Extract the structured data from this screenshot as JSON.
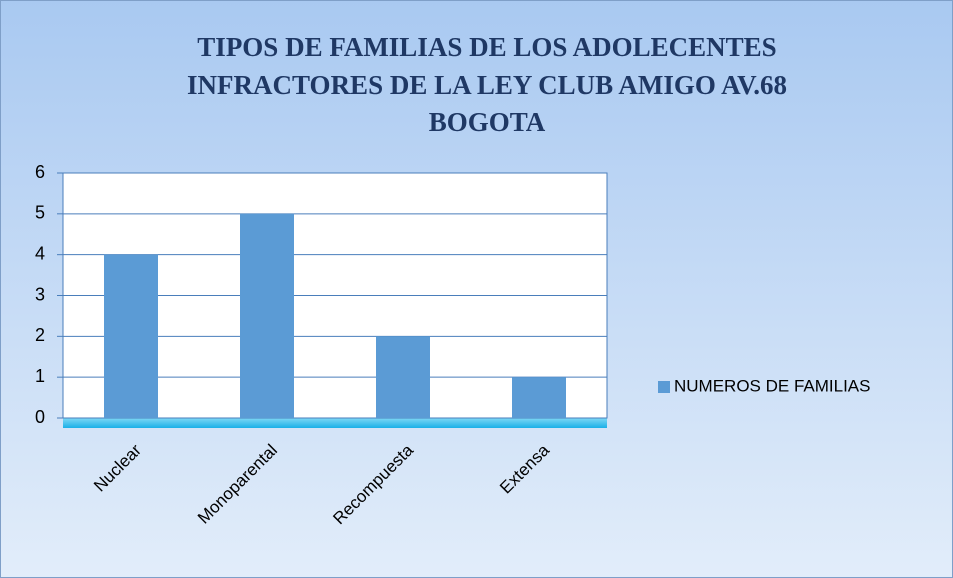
{
  "chart_data": {
    "type": "bar",
    "title": [
      "TIPOS  DE FAMILIAS DE LOS ADOLECENTES",
      "INFRACTORES DE LA LEY CLUB AMIGO AV.68",
      "BOGOTA"
    ],
    "categories": [
      "Nuclear",
      "Monoparental",
      "Recompuesta",
      "Extensa"
    ],
    "series": [
      {
        "name": "NUMEROS DE FAMILIAS",
        "color": "#5b9bd5",
        "values": [
          4,
          5,
          2,
          1
        ]
      }
    ],
    "ylim": [
      0,
      6
    ],
    "yticks": [
      0,
      1,
      2,
      3,
      4,
      5,
      6
    ],
    "grid": true,
    "legend": "right"
  }
}
